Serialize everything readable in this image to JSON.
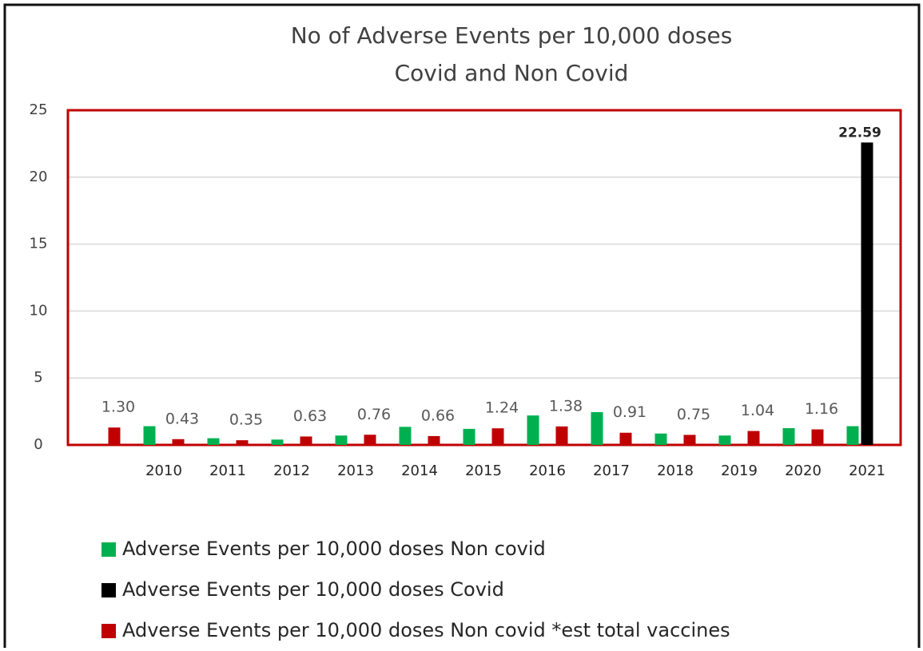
{
  "chart_data": {
    "type": "bar",
    "title": "No of Adverse Events per 10,000 doses",
    "subtitle": "Covid and Non Covid",
    "categories": [
      null,
      "2010",
      "2011",
      "2012",
      "2013",
      "2014",
      "2015",
      "2016",
      "2017",
      "2018",
      "2019",
      "2020",
      "2021"
    ],
    "series": [
      {
        "name": "Adverse Events per 10,000 doses Non covid",
        "color": "#00b050",
        "values": [
          null,
          1.4,
          0.5,
          0.4,
          0.7,
          1.35,
          1.2,
          2.2,
          2.45,
          0.85,
          0.7,
          1.25,
          1.4
        ]
      },
      {
        "name": "Adverse Events per 10,000 doses Covid",
        "color": "#000000",
        "values": [
          null,
          null,
          null,
          null,
          null,
          null,
          null,
          null,
          null,
          null,
          null,
          null,
          22.59
        ]
      },
      {
        "name": "Adverse Events per 10,000 doses Non covid *est total vaccines",
        "color": "#c00000",
        "values": [
          1.3,
          0.43,
          0.35,
          0.63,
          0.76,
          0.66,
          1.24,
          1.38,
          0.91,
          0.75,
          1.04,
          1.16,
          null
        ],
        "value_labels": [
          "1.30",
          "0.43",
          "0.35",
          "0.63",
          "0.76",
          "0.66",
          "1.24",
          "1.38",
          "0.91",
          "0.75",
          "1.04",
          "1.16",
          null
        ]
      }
    ],
    "ylim": [
      0,
      25
    ],
    "yticks": [
      0,
      5,
      10,
      15,
      20,
      25
    ],
    "grid": true
  }
}
